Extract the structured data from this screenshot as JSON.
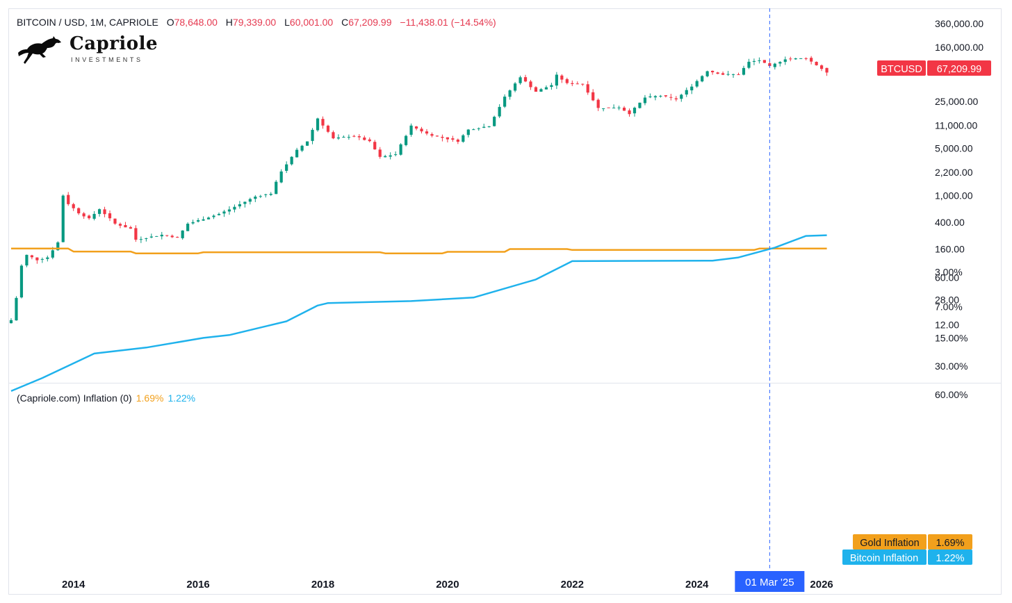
{
  "header": {
    "symbol": "BITCOIN / USD, 1M, CAPRIOLE",
    "open_label": "O",
    "open": "78,648.00",
    "high_label": "H",
    "high": "79,339.00",
    "low_label": "L",
    "low": "60,001.00",
    "close_label": "C",
    "close": "67,209.99",
    "change": "−11,438.01 (−14.54%)"
  },
  "logo": {
    "name": "Capriole",
    "subtitle": "INVESTMENTS",
    "icon": "horse-icon"
  },
  "colors": {
    "up": "#089981",
    "down": "#f23645",
    "gold": "#f2a01c",
    "bitcoin_inflation": "#1fb2ec",
    "crosshair": "#2962ff"
  },
  "chart_data": [
    {
      "type": "candlestick",
      "scale": "log",
      "price_tag": {
        "label": "BTCUSD",
        "value": "67,209.99"
      },
      "y_ticks": [
        "360,000.00",
        "160,000.00",
        "25,000.00",
        "11,000.00",
        "5,000.00",
        "2,200.00",
        "1,000.00",
        "400.00",
        "160.00",
        "60.00",
        "28.00",
        "12.00"
      ],
      "y_tick_values": [
        360000,
        160000,
        25000,
        11000,
        5000,
        2200,
        1000,
        400,
        160,
        60,
        28,
        12
      ],
      "anchors": [
        [
          "2013-01",
          14
        ],
        [
          "2013-02",
          30
        ],
        [
          "2013-03",
          90
        ],
        [
          "2013-04",
          130
        ],
        [
          "2013-06",
          110
        ],
        [
          "2013-08",
          120
        ],
        [
          "2013-10",
          200
        ],
        [
          "2013-11",
          1000
        ],
        [
          "2013-12",
          750
        ],
        [
          "2014-02",
          550
        ],
        [
          "2014-04",
          450
        ],
        [
          "2014-06",
          630
        ],
        [
          "2014-09",
          380
        ],
        [
          "2014-12",
          320
        ],
        [
          "2015-01",
          220
        ],
        [
          "2015-06",
          260
        ],
        [
          "2015-09",
          236
        ],
        [
          "2015-11",
          380
        ],
        [
          "2016-05",
          530
        ],
        [
          "2016-07",
          620
        ],
        [
          "2016-12",
          960
        ],
        [
          "2017-03",
          1070
        ],
        [
          "2017-05",
          2300
        ],
        [
          "2017-08",
          4700
        ],
        [
          "2017-10",
          6400
        ],
        [
          "2017-12",
          14000
        ],
        [
          "2018-03",
          7000
        ],
        [
          "2018-07",
          7700
        ],
        [
          "2018-10",
          6300
        ],
        [
          "2018-12",
          3700
        ],
        [
          "2019-03",
          4100
        ],
        [
          "2019-06",
          10800
        ],
        [
          "2019-09",
          8300
        ],
        [
          "2019-11",
          7500
        ],
        [
          "2020-03",
          6400
        ],
        [
          "2020-05",
          9500
        ],
        [
          "2020-09",
          10800
        ],
        [
          "2020-12",
          29000
        ],
        [
          "2021-03",
          58000
        ],
        [
          "2021-06",
          35000
        ],
        [
          "2021-09",
          43800
        ],
        [
          "2021-10",
          61300
        ],
        [
          "2021-12",
          46200
        ],
        [
          "2022-03",
          45500
        ],
        [
          "2022-06",
          19900
        ],
        [
          "2022-10",
          20500
        ],
        [
          "2022-12",
          16500
        ],
        [
          "2023-03",
          28500
        ],
        [
          "2023-06",
          30400
        ],
        [
          "2023-09",
          27000
        ],
        [
          "2023-12",
          42300
        ],
        [
          "2024-03",
          71300
        ],
        [
          "2024-06",
          62700
        ],
        [
          "2024-09",
          63300
        ],
        [
          "2024-11",
          96400
        ],
        [
          "2025-01",
          102400
        ],
        [
          "2025-03",
          82500
        ],
        [
          "2025-06",
          107100
        ],
        [
          "2025-08",
          108200
        ],
        [
          "2025-10",
          109500
        ],
        [
          "2025-12",
          87000
        ],
        [
          "2026-02",
          67210
        ]
      ],
      "last_candle": {
        "o": 78648.0,
        "h": 79339.0,
        "l": 60001.0,
        "c": 67209.99
      }
    },
    {
      "type": "line",
      "scale": "log",
      "title": "(Capriole.com) Inflation (0)",
      "y_ticks": [
        "60.00%",
        "30.00%",
        "15.00%",
        "7.00%",
        "3.00%"
      ],
      "y_tick_values": [
        60,
        30,
        15,
        7,
        3
      ],
      "x_ticks": [
        "2014",
        "2016",
        "2018",
        "2020",
        "2022",
        "2024",
        "2026"
      ],
      "crosshair_label": "01 Mar '25",
      "crosshair_x": "2025-03",
      "series": [
        {
          "name": "Gold Inflation",
          "value_label": "1.69%",
          "points": [
            [
              "2013-01",
              1.69
            ],
            [
              "2013-12",
              1.69
            ],
            [
              "2014-01",
              1.82
            ],
            [
              "2014-12",
              1.82
            ],
            [
              "2015-01",
              1.9
            ],
            [
              "2016-01",
              1.9
            ],
            [
              "2016-02",
              1.85
            ],
            [
              "2018-12",
              1.85
            ],
            [
              "2019-01",
              1.9
            ],
            [
              "2019-12",
              1.9
            ],
            [
              "2020-01",
              1.83
            ],
            [
              "2020-12",
              1.83
            ],
            [
              "2021-01",
              1.71
            ],
            [
              "2021-12",
              1.71
            ],
            [
              "2022-01",
              1.75
            ],
            [
              "2024-12",
              1.75
            ],
            [
              "2025-01",
              1.69
            ],
            [
              "2026-02",
              1.69
            ]
          ]
        },
        {
          "name": "Bitcoin Inflation",
          "value_label": "1.22%",
          "points": [
            [
              "2013-01",
              55
            ],
            [
              "2013-07",
              40
            ],
            [
              "2014-05",
              22
            ],
            [
              "2015-03",
              19
            ],
            [
              "2016-02",
              15
            ],
            [
              "2016-07",
              14
            ],
            [
              "2017-06",
              10
            ],
            [
              "2017-12",
              6.8
            ],
            [
              "2018-02",
              6.4
            ],
            [
              "2019-06",
              6.1
            ],
            [
              "2020-06",
              5.6
            ],
            [
              "2021-06",
              3.6
            ],
            [
              "2022-01",
              2.3
            ],
            [
              "2024-04",
              2.27
            ],
            [
              "2024-09",
              2.1
            ],
            [
              "2025-04",
              1.65
            ],
            [
              "2025-10",
              1.24
            ],
            [
              "2026-02",
              1.22
            ]
          ]
        }
      ]
    }
  ]
}
